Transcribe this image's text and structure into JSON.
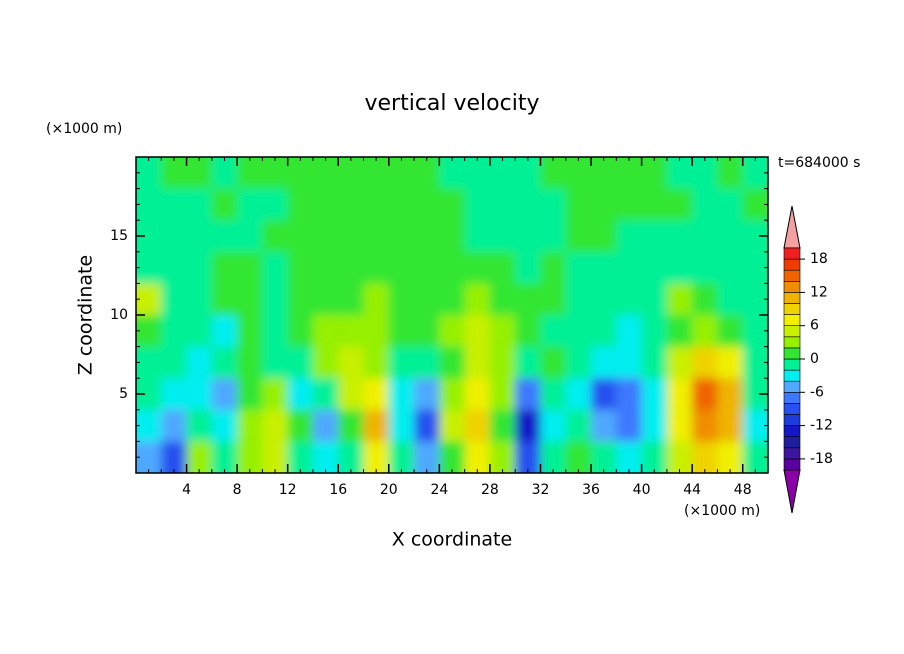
{
  "chart_data": {
    "type": "contour",
    "title": "vertical velocity",
    "xlabel": "X coordinate",
    "ylabel": "Z coordinate",
    "x_unit_label": "(×1000 m)",
    "y_unit_label": "(×1000 m)",
    "time_label": "t=684000 s",
    "xlim": [
      0,
      50
    ],
    "ylim": [
      0,
      20
    ],
    "xticks": [
      4,
      8,
      12,
      16,
      20,
      24,
      28,
      32,
      36,
      40,
      44,
      48
    ],
    "yticks": [
      5,
      10,
      15
    ],
    "x": [
      1,
      3,
      5,
      7,
      9,
      11,
      13,
      15,
      17,
      19,
      21,
      23,
      25,
      27,
      29,
      31,
      33,
      35,
      37,
      39,
      41,
      43,
      45,
      47,
      49
    ],
    "z": [
      1,
      3,
      5,
      7,
      9,
      11,
      13,
      15,
      17,
      19
    ],
    "values": [
      [
        -6,
        -10,
        2,
        -2,
        2,
        4,
        -2,
        -4,
        -2,
        6,
        -2,
        -6,
        0,
        6,
        2,
        -10,
        -2,
        0,
        -2,
        -4,
        -2,
        4,
        8,
        6,
        -2
      ],
      [
        -4,
        -6,
        -2,
        -4,
        2,
        4,
        0,
        -6,
        0,
        10,
        -4,
        -10,
        4,
        8,
        0,
        -14,
        -4,
        -2,
        -6,
        -8,
        -4,
        6,
        12,
        10,
        -4
      ],
      [
        -2,
        -4,
        -4,
        -6,
        0,
        2,
        -4,
        -2,
        4,
        6,
        -4,
        -6,
        2,
        6,
        2,
        -8,
        -2,
        -4,
        -10,
        -8,
        -4,
        6,
        14,
        10,
        -2
      ],
      [
        -2,
        -2,
        -4,
        -2,
        0,
        -2,
        -2,
        2,
        4,
        2,
        -2,
        -2,
        0,
        4,
        2,
        -2,
        0,
        -2,
        -4,
        -4,
        -2,
        4,
        8,
        6,
        -2
      ],
      [
        0,
        -2,
        -2,
        -4,
        0,
        -2,
        0,
        2,
        2,
        2,
        0,
        0,
        2,
        4,
        2,
        0,
        -2,
        -2,
        -2,
        -4,
        -2,
        0,
        2,
        0,
        -2
      ],
      [
        4,
        -2,
        -2,
        0,
        0,
        -2,
        0,
        0,
        0,
        2,
        0,
        0,
        0,
        2,
        0,
        0,
        0,
        -2,
        -2,
        -2,
        -2,
        2,
        0,
        -2,
        -2
      ],
      [
        -2,
        -2,
        -2,
        0,
        0,
        -2,
        0,
        0,
        0,
        0,
        0,
        0,
        0,
        0,
        0,
        -2,
        0,
        -2,
        -2,
        -2,
        -2,
        -2,
        -2,
        -2,
        -2
      ],
      [
        -2,
        -2,
        -2,
        -2,
        -2,
        0,
        0,
        0,
        0,
        0,
        0,
        0,
        0,
        -2,
        -2,
        -2,
        -2,
        0,
        0,
        -2,
        -2,
        -2,
        -2,
        -2,
        -2
      ],
      [
        -2,
        -2,
        -2,
        0,
        -2,
        -2,
        0,
        0,
        0,
        0,
        0,
        0,
        0,
        -2,
        -2,
        -2,
        -2,
        0,
        0,
        0,
        0,
        0,
        -2,
        -2,
        0
      ],
      [
        -2,
        0,
        0,
        -2,
        0,
        0,
        0,
        0,
        0,
        0,
        0,
        0,
        -2,
        -2,
        -2,
        -2,
        0,
        0,
        0,
        0,
        0,
        -2,
        -2,
        0,
        -2
      ]
    ],
    "levels": [
      -20,
      -18,
      -16,
      -14,
      -12,
      -10,
      -8,
      -6,
      -4,
      -2,
      0,
      2,
      4,
      6,
      8,
      10,
      12,
      14,
      16,
      18,
      20
    ],
    "colors": [
      "#8c00aa",
      "#5a00a0",
      "#3c14a0",
      "#1e1e9c",
      "#1414c8",
      "#1e3cdc",
      "#2850f0",
      "#3c78ff",
      "#50a8ff",
      "#00eef0",
      "#00f096",
      "#32e632",
      "#96f000",
      "#c8f000",
      "#f0f000",
      "#f0d200",
      "#f0b400",
      "#f08c00",
      "#f06400",
      "#f03c00",
      "#f01e1e",
      "#f4a0a0"
    ],
    "colorbar_ticks": [
      -18,
      -12,
      -6,
      0,
      6,
      12,
      18
    ]
  }
}
